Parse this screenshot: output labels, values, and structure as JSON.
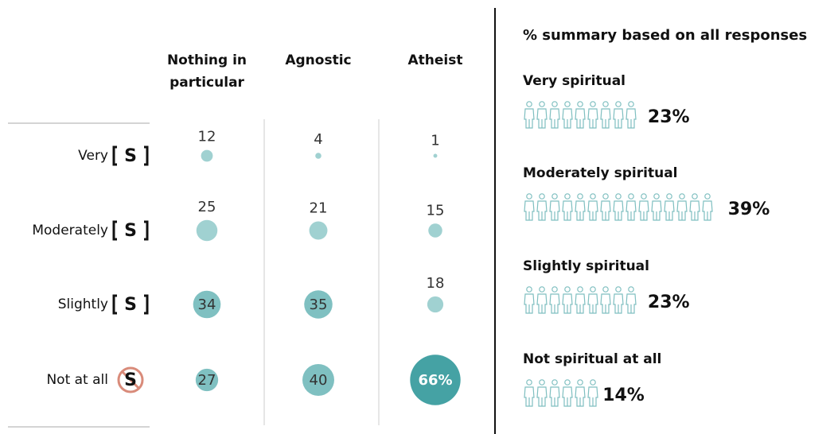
{
  "chart_data": [
    {
      "type": "bubble-grid",
      "columns": [
        "Nothing in particular",
        "Agnostic",
        "Atheist"
      ],
      "icon": "S",
      "color": "#a0d1d1",
      "highlight_color": "#45a2a4",
      "series": [
        {
          "name": "Very",
          "values": [
            12,
            4,
            1
          ]
        },
        {
          "name": "Moderately",
          "values": [
            25,
            21,
            15
          ]
        },
        {
          "name": "Slightly",
          "values": [
            34,
            35,
            18
          ]
        },
        {
          "name": "Not at all",
          "values": [
            27,
            40,
            66
          ],
          "value_labels": [
            "27",
            "40",
            "66%"
          ]
        }
      ]
    },
    {
      "type": "pictogram",
      "title": "% summary based on all responses",
      "color": "#7fbfc0",
      "categories": [
        "Very spiritual",
        "Moderately spiritual",
        "Slightly spiritual",
        "Not spiritual at all"
      ],
      "values": [
        23,
        39,
        23,
        14
      ],
      "value_labels": [
        "23%",
        "39%",
        "23%",
        "14%"
      ]
    }
  ]
}
